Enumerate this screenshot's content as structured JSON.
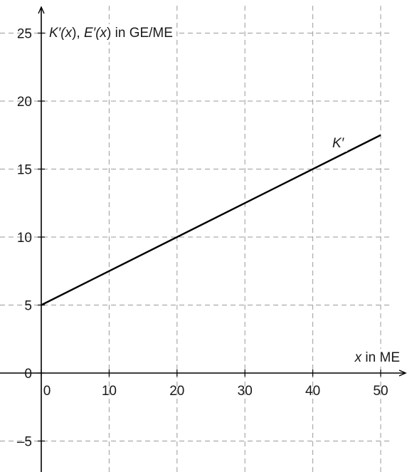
{
  "chart_data": {
    "type": "line",
    "title": "",
    "ylabel_parts": [
      "K′(",
      "x",
      "), ",
      "E′(",
      "x",
      ") in GE/ME"
    ],
    "xlabel_parts": [
      "x",
      " in ME"
    ],
    "xlim": [
      -1,
      51
    ],
    "ylim": [
      -7.5,
      26.5
    ],
    "xticks": [
      0,
      10,
      20,
      30,
      40,
      50
    ],
    "xtick_labels": [
      "0",
      "10",
      "20",
      "30",
      "40",
      "50"
    ],
    "yticks": [
      -5,
      0,
      5,
      10,
      15,
      20,
      25
    ],
    "ytick_labels": [
      "–5",
      "0",
      "5",
      "10",
      "15",
      "20",
      "25"
    ],
    "grid": true,
    "grid_style": "dashed",
    "series": [
      {
        "name": "K′",
        "x": [
          0,
          50
        ],
        "y": [
          5,
          17.5
        ],
        "color": "#000000"
      }
    ]
  }
}
